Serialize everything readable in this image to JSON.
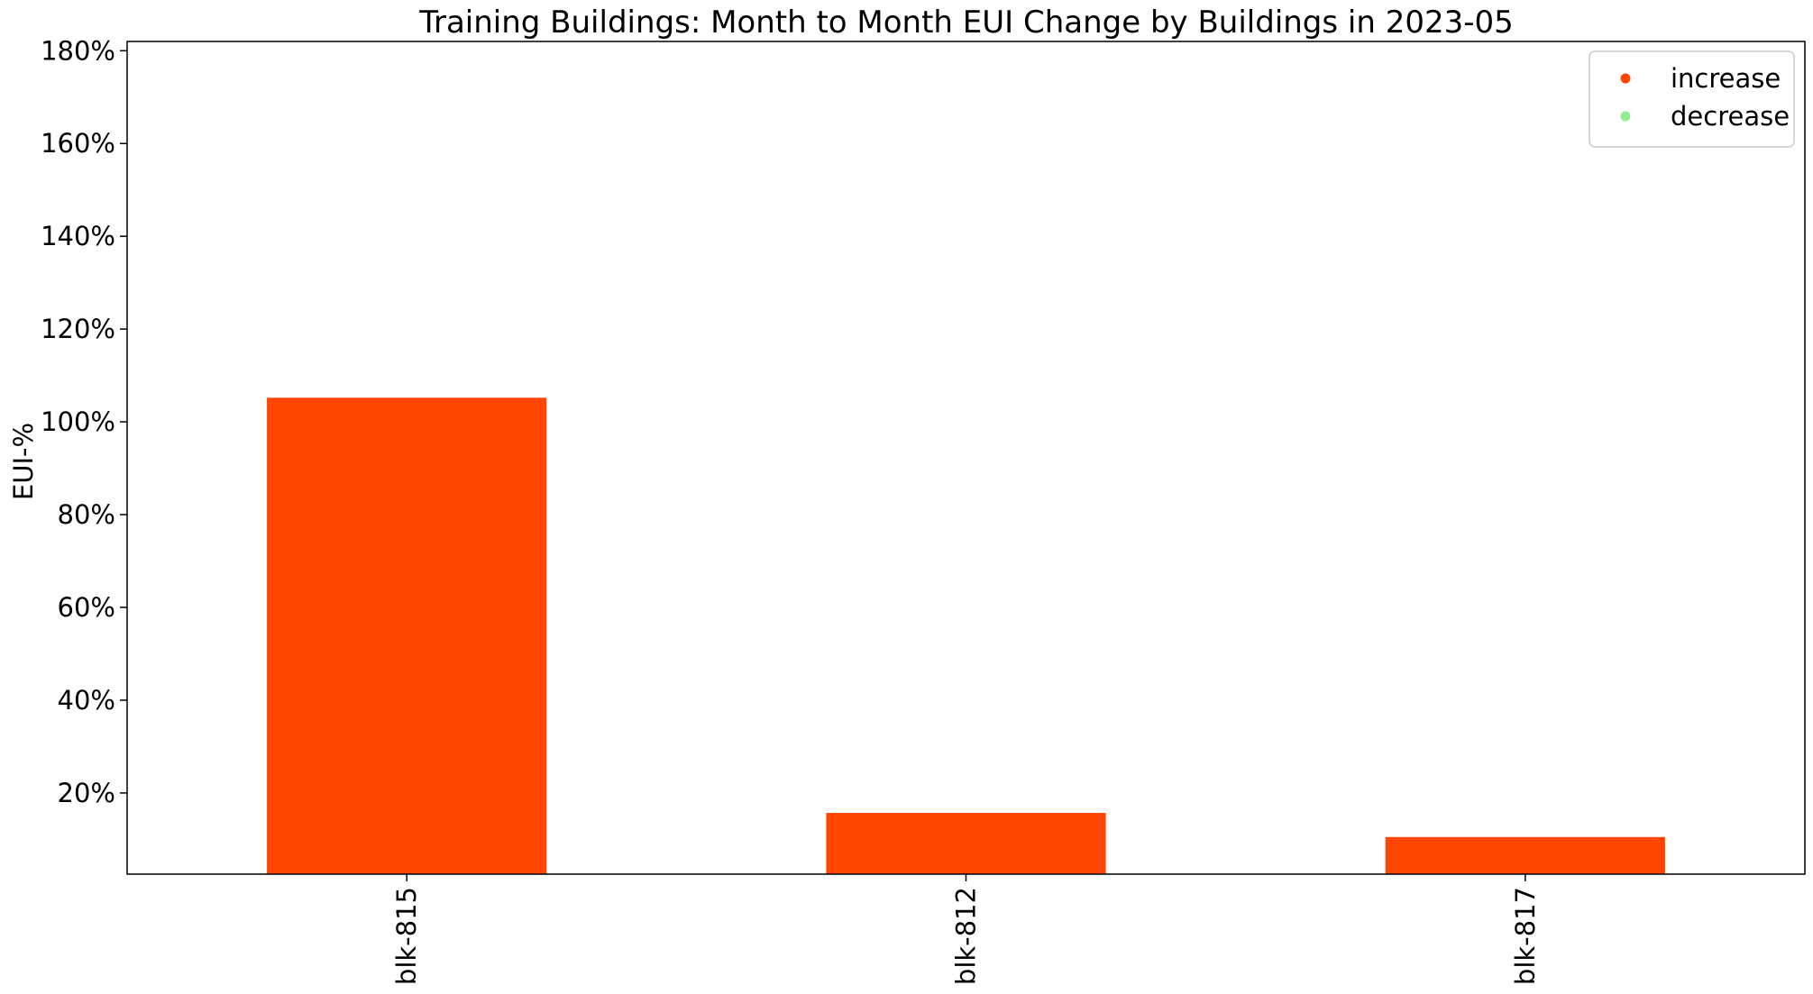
{
  "chart_data": {
    "type": "bar",
    "title": "Training Buildings:  Month to Month EUI Change by Buildings in 2023-05",
    "xlabel": "",
    "ylabel": "EUI-%",
    "categories": [
      "blk-815",
      "blk-812",
      "blk-817"
    ],
    "values": [
      105.2,
      15.7,
      10.5
    ],
    "bar_colors": [
      "#ff4500",
      "#ff4500",
      "#ff4500"
    ],
    "ylim": [
      2.5,
      182
    ],
    "yticks": [
      20,
      40,
      60,
      80,
      100,
      120,
      140,
      160,
      180
    ],
    "ytick_labels": [
      "20%",
      "40%",
      "60%",
      "80%",
      "100%",
      "120%",
      "140%",
      "160%",
      "180%"
    ],
    "legend": {
      "position": "top-right",
      "entries": [
        {
          "label": "increase",
          "color": "#ff4500"
        },
        {
          "label": "decrease",
          "color": "#90ee90"
        }
      ]
    },
    "grid": false
  }
}
